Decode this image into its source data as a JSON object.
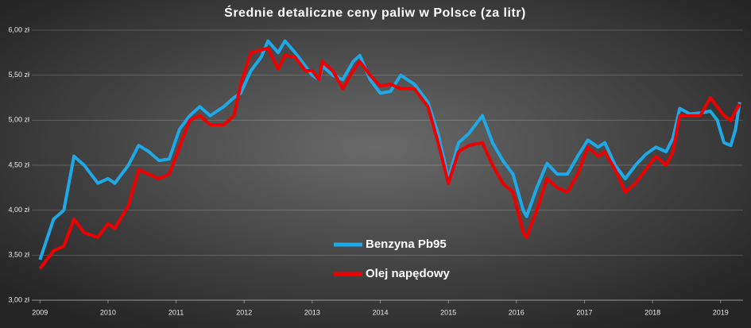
{
  "chart_data": {
    "type": "line",
    "title": "Średnie detaliczne ceny paliw w Polsce (za litr)",
    "x": [
      2009,
      2009.2,
      2009.35,
      2009.5,
      2009.65,
      2009.85,
      2010,
      2010.1,
      2010.3,
      2010.45,
      2010.6,
      2010.75,
      2010.9,
      2011.05,
      2011.2,
      2011.35,
      2011.5,
      2011.7,
      2011.85,
      2011.95,
      2012.1,
      2012.25,
      2012.35,
      2012.5,
      2012.6,
      2012.75,
      2012.9,
      2013,
      2013.1,
      2013.15,
      2013.3,
      2013.45,
      2013.6,
      2013.7,
      2013.85,
      2014,
      2014.15,
      2014.3,
      2014.5,
      2014.7,
      2014.85,
      2015,
      2015.15,
      2015.3,
      2015.5,
      2015.65,
      2015.8,
      2015.95,
      2016.1,
      2016.15,
      2016.3,
      2016.45,
      2016.6,
      2016.75,
      2016.9,
      2017.05,
      2017.2,
      2017.3,
      2017.45,
      2017.6,
      2017.75,
      2017.9,
      2018.05,
      2018.2,
      2018.3,
      2018.4,
      2018.55,
      2018.7,
      2018.85,
      2018.95,
      2019.05,
      2019.15,
      2019.22,
      2019.28
    ],
    "series": [
      {
        "name": "Benzyna Pb95",
        "color": "#1fa8e6",
        "values": [
          3.45,
          3.9,
          4.0,
          4.6,
          4.5,
          4.3,
          4.35,
          4.3,
          4.5,
          4.72,
          4.65,
          4.55,
          4.57,
          4.9,
          5.05,
          5.15,
          5.05,
          5.15,
          5.25,
          5.3,
          5.55,
          5.7,
          5.88,
          5.75,
          5.88,
          5.75,
          5.6,
          5.5,
          5.45,
          5.6,
          5.5,
          5.45,
          5.65,
          5.72,
          5.45,
          5.3,
          5.32,
          5.5,
          5.4,
          5.2,
          4.85,
          4.35,
          4.75,
          4.85,
          5.05,
          4.75,
          4.55,
          4.4,
          4.0,
          3.93,
          4.25,
          4.52,
          4.4,
          4.4,
          4.6,
          4.78,
          4.7,
          4.75,
          4.5,
          4.35,
          4.5,
          4.62,
          4.7,
          4.65,
          4.8,
          5.13,
          5.07,
          5.08,
          5.1,
          5.0,
          4.75,
          4.72,
          4.9,
          5.2
        ]
      },
      {
        "name": "Olej napędowy",
        "color": "#ee0000",
        "values": [
          3.35,
          3.55,
          3.6,
          3.9,
          3.75,
          3.7,
          3.85,
          3.8,
          4.05,
          4.45,
          4.4,
          4.35,
          4.4,
          4.7,
          5.0,
          5.05,
          4.95,
          4.95,
          5.05,
          5.4,
          5.75,
          5.78,
          5.8,
          5.57,
          5.72,
          5.7,
          5.55,
          5.55,
          5.45,
          5.65,
          5.55,
          5.35,
          5.55,
          5.65,
          5.5,
          5.38,
          5.4,
          5.35,
          5.35,
          5.15,
          4.75,
          4.3,
          4.65,
          4.72,
          4.75,
          4.5,
          4.3,
          4.2,
          3.75,
          3.7,
          4.0,
          4.35,
          4.25,
          4.2,
          4.4,
          4.7,
          4.6,
          4.65,
          4.45,
          4.2,
          4.3,
          4.45,
          4.6,
          4.5,
          4.65,
          5.05,
          5.05,
          5.05,
          5.25,
          5.15,
          5.05,
          5.0,
          5.1,
          5.18
        ]
      }
    ],
    "xlim": [
      2008.88,
      2019.33
    ],
    "xticks": [
      2009,
      2010,
      2011,
      2012,
      2013,
      2014,
      2015,
      2016,
      2017,
      2018,
      2019
    ],
    "ylim": [
      3,
      6
    ],
    "yticks": [
      {
        "value": 3,
        "label": "3,00 zł"
      },
      {
        "value": 3.5,
        "label": "3,50 zł"
      },
      {
        "value": 4,
        "label": "4,00 zł"
      },
      {
        "value": 4.5,
        "label": "4,50 zł"
      },
      {
        "value": 5,
        "label": "5,00 zł"
      },
      {
        "value": 5.5,
        "label": "5,50 zł"
      },
      {
        "value": 6,
        "label": "6,00 zł"
      }
    ],
    "grid": true,
    "legend_position": "center"
  }
}
